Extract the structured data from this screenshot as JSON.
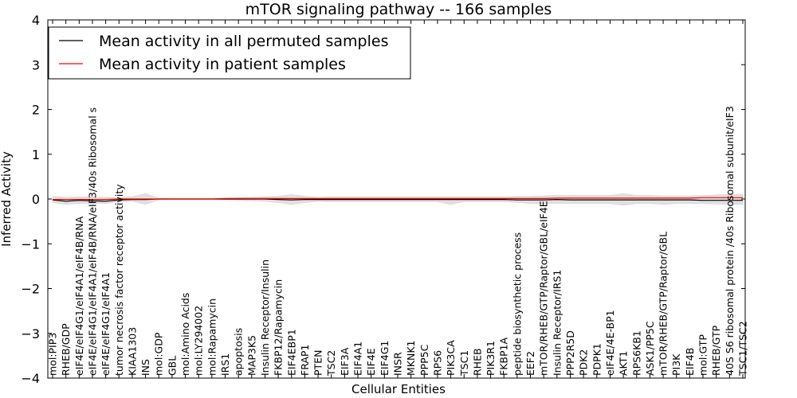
{
  "chart_data": {
    "type": "line",
    "title": "mTOR signaling pathway -- 166 samples",
    "xlabel": "Cellular Entities",
    "ylabel": "Inferred Activity",
    "ylim": [
      -4,
      4
    ],
    "yticks": [
      4,
      3,
      2,
      1,
      0,
      -1,
      -2,
      -3,
      -4
    ],
    "ytick_labels": [
      "4",
      "3",
      "2",
      "1",
      "0",
      "−1",
      "−2",
      "−3",
      "−4"
    ],
    "legend_placement": "top-left",
    "categories": [
      "mol:PIP3",
      "RHEB/GDP",
      "eIF4E/eIF4G1/eIF4A1/eIF4B/RNA",
      "eIF4E/eIF4G1/eIF4A1/eIF4B/RNA/eIF3/40s Ribosomal s",
      "eIF4E/eIF4G1/eIF4A1",
      "tumor necrosis factor receptor activity",
      "KIAA1303",
      "INS",
      "mol:GDP",
      "GBL",
      "mol:Amino Acids",
      "mol:LY294002",
      "mol:Rapamycin",
      "IRS1",
      "apoptosis",
      "MAP3K5",
      "Insulin Receptor/Insulin",
      "FKBP12/Rapamycin",
      "EIF4EBP1",
      "FRAP1",
      "PTEN",
      "TSC2",
      "EIF3A",
      "EIF4A1",
      "EIF4E",
      "EIF4G1",
      "INSR",
      "MKNK1",
      "PPP5C",
      "RPS6",
      "PIK3CA",
      "TSC1",
      "RHEB",
      "PIK3R1",
      "FKBP1A",
      "peptide biosynthetic process",
      "EEF2",
      "mTOR/RHEB/GTP/Raptor/GBL/eIF4E",
      "Insulin Receptor/IRS1",
      "PPP2R5D",
      "PDK2",
      "PDPK1",
      "eIF4E/4E-BP1",
      "AKT1",
      "RPS6KB1",
      "ASK1/PP5C",
      "mTOR/RHEB/GTP/Raptor/GBL",
      "PI3K",
      "EIF4B",
      "mol:GTP",
      "RHEB/GTP",
      "40S S6 ribosomal protein /40s Ribosomal subunit/eIF3",
      "TSC1/TSC2"
    ],
    "series": [
      {
        "name": "Mean activity in all permuted samples",
        "color": "#000000",
        "values": [
          -0.02,
          -0.05,
          -0.03,
          -0.04,
          -0.05,
          -0.02,
          -0.01,
          -0.01,
          0.0,
          0.0,
          0.0,
          0.0,
          0.0,
          0.0,
          0.0,
          0.0,
          0.0,
          -0.01,
          -0.02,
          -0.01,
          -0.01,
          -0.01,
          -0.01,
          -0.01,
          -0.01,
          -0.01,
          -0.01,
          -0.01,
          -0.01,
          -0.01,
          -0.01,
          -0.01,
          -0.01,
          -0.01,
          -0.01,
          -0.02,
          -0.02,
          -0.02,
          -0.01,
          -0.02,
          -0.02,
          -0.02,
          -0.02,
          -0.02,
          -0.02,
          -0.02,
          -0.02,
          -0.02,
          -0.02,
          -0.03,
          -0.03,
          -0.03,
          -0.03
        ]
      },
      {
        "name": "Mean activity in patient samples",
        "color": "#ff0000",
        "values": [
          -0.01,
          -0.01,
          -0.01,
          -0.01,
          -0.01,
          0.0,
          0.0,
          0.0,
          0.0,
          0.0,
          0.0,
          0.0,
          0.0,
          0.01,
          0.01,
          0.01,
          0.01,
          0.01,
          0.01,
          0.01,
          0.01,
          0.01,
          0.01,
          0.01,
          0.01,
          0.01,
          0.01,
          0.01,
          0.01,
          0.01,
          0.01,
          0.01,
          0.01,
          0.01,
          0.01,
          0.01,
          0.01,
          0.01,
          0.02,
          0.02,
          0.02,
          0.02,
          0.02,
          0.02,
          0.02,
          0.02,
          0.02,
          0.02,
          0.02,
          0.03,
          0.03,
          0.03,
          0.03
        ]
      }
    ],
    "band": {
      "name": "permuted spread",
      "color": "#e0e0e0",
      "upper": [
        0.06,
        0.04,
        0.05,
        0.05,
        0.04,
        0.03,
        0.05,
        0.12,
        0.02,
        0.01,
        0.01,
        0.01,
        0.01,
        0.02,
        0.03,
        0.04,
        0.05,
        0.06,
        0.1,
        0.06,
        0.04,
        0.05,
        0.05,
        0.05,
        0.05,
        0.05,
        0.05,
        0.05,
        0.05,
        0.05,
        0.05,
        0.05,
        0.05,
        0.05,
        0.05,
        0.06,
        0.06,
        0.07,
        0.08,
        0.08,
        0.08,
        0.08,
        0.08,
        0.12,
        0.08,
        0.08,
        0.07,
        0.07,
        0.07,
        0.08,
        0.09,
        0.1,
        0.1
      ],
      "lower": [
        -0.08,
        -0.12,
        -0.1,
        -0.1,
        -0.1,
        -0.06,
        -0.05,
        -0.12,
        -0.02,
        -0.01,
        -0.01,
        -0.01,
        -0.01,
        -0.02,
        -0.03,
        -0.04,
        -0.05,
        -0.08,
        -0.12,
        -0.08,
        -0.05,
        -0.06,
        -0.06,
        -0.06,
        -0.06,
        -0.06,
        -0.06,
        -0.06,
        -0.06,
        -0.06,
        -0.12,
        -0.06,
        -0.06,
        -0.06,
        -0.06,
        -0.08,
        -0.1,
        -0.1,
        -0.1,
        -0.1,
        -0.1,
        -0.1,
        -0.1,
        -0.14,
        -0.1,
        -0.1,
        -0.12,
        -0.1,
        -0.1,
        -0.1,
        -0.11,
        -0.12,
        -0.12
      ]
    }
  }
}
